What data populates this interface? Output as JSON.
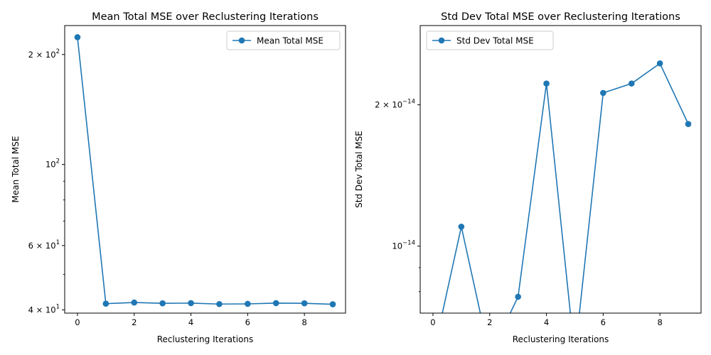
{
  "chart_data": [
    {
      "type": "line",
      "title": "Mean Total MSE over Reclustering Iterations",
      "xlabel": "Reclustering Iterations",
      "ylabel": "Mean Total MSE",
      "yscale": "log",
      "xlim": [
        -0.45,
        9.45
      ],
      "ylim": [
        39.2,
        240
      ],
      "x_ticks": [
        0,
        2,
        4,
        6,
        8
      ],
      "y_ticks": [
        {
          "value": 40,
          "base": "4 × 10",
          "exp": "1"
        },
        {
          "value": 60,
          "base": "6 × 10",
          "exp": "1"
        },
        {
          "value": 100,
          "base": "10",
          "exp": "2"
        },
        {
          "value": 200,
          "base": "2 × 10",
          "exp": "2"
        }
      ],
      "y_minor": [
        50,
        70,
        80,
        90
      ],
      "legend": {
        "position": "top-right"
      },
      "grid": false,
      "series": [
        {
          "name": "Mean Total MSE",
          "color": "#1f77b4",
          "marker": "circle",
          "x": [
            0,
            1,
            2,
            3,
            4,
            5,
            6,
            7,
            8,
            9
          ],
          "values": [
            223,
            41.6,
            41.9,
            41.7,
            41.75,
            41.5,
            41.55,
            41.75,
            41.7,
            41.45
          ]
        }
      ]
    },
    {
      "type": "line",
      "title": "Std Dev Total MSE over Reclustering Iterations",
      "xlabel": "Reclustering Iterations",
      "ylabel": "Std Dev Total MSE",
      "yscale": "log",
      "xlim": [
        -0.45,
        9.45
      ],
      "ylim": [
        7.2e-15,
        2.95e-14
      ],
      "x_ticks": [
        0,
        2,
        4,
        6,
        8
      ],
      "y_ticks": [
        {
          "value": 1e-14,
          "base": "10",
          "exp": "−14"
        },
        {
          "value": 2e-14,
          "base": "2 × 10",
          "exp": "−14"
        }
      ],
      "y_minor": [
        8e-15,
        9e-15
      ],
      "legend": {
        "position": "top-left"
      },
      "grid": false,
      "series": [
        {
          "name": "Std Dev Total MSE",
          "color": "#1f77b4",
          "marker": "circle",
          "x": [
            0,
            1,
            2,
            3,
            4,
            5,
            6,
            7,
            8,
            9
          ],
          "values": [
            0,
            1.1e-14,
            0,
            7.8e-15,
            2.22e-14,
            0,
            2.12e-14,
            2.22e-14,
            2.45e-14,
            1.82e-14
          ]
        }
      ]
    }
  ]
}
